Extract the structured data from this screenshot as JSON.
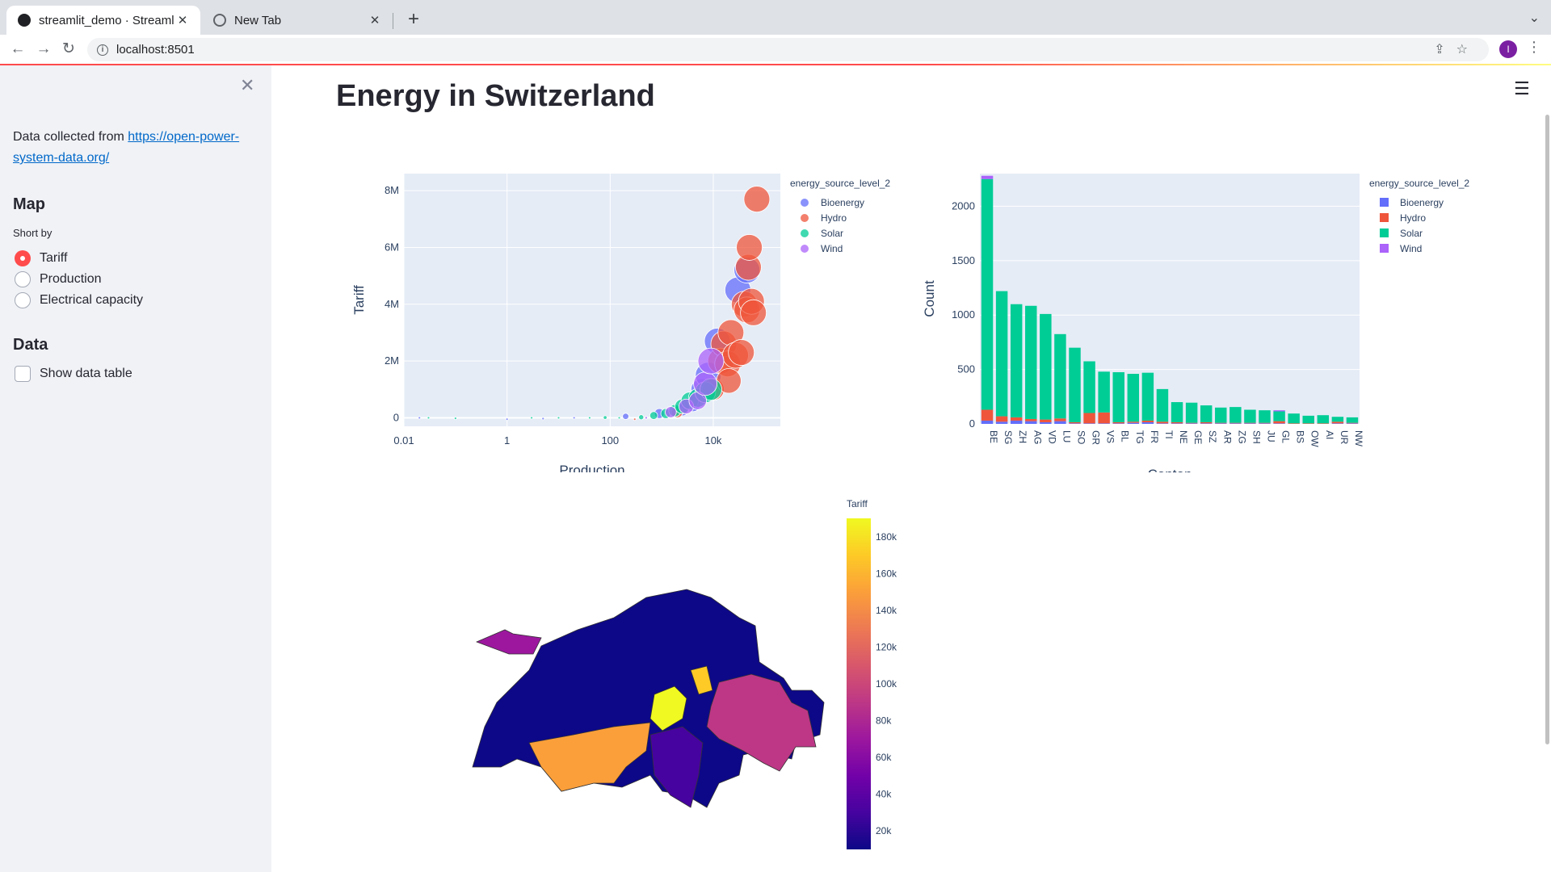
{
  "browser": {
    "tabs": [
      {
        "title": "streamlit_demo · Streamlit",
        "active": true,
        "icon": "streamlit-icon"
      },
      {
        "title": "New Tab",
        "active": false,
        "icon": "chrome-icon"
      }
    ],
    "new_tab_label": "+",
    "url": "localhost:8501",
    "profile_initial": "I"
  },
  "sidebar": {
    "intro_text": "Data collected from ",
    "link_text": "https://open-power-system-data.org/",
    "map_heading": "Map",
    "sort_label": "Short by",
    "radio_options": [
      "Tariff",
      "Production",
      "Electrical capacity"
    ],
    "selected_option": "Tariff",
    "data_heading": "Data",
    "checkbox_label": "Show data table",
    "checkbox_checked": false
  },
  "main": {
    "title": "Energy in Switzerland"
  },
  "colors": {
    "accent": "#ff4b4b",
    "link": "#0068c9",
    "Bioenergy": "#636efa",
    "Hydro": "#ef553b",
    "Solar": "#00cc96",
    "Wind": "#ab63fa",
    "plot_bg": "#e5ecf6"
  },
  "chart_data": [
    {
      "type": "scatter",
      "xlabel": "Production",
      "ylabel": "Tariff",
      "x_scale": "log",
      "x_ticks": [
        "0.01",
        "1",
        "100",
        "10k"
      ],
      "y_ticks": [
        "0",
        "2M",
        "4M",
        "6M",
        "8M"
      ],
      "ylim": [
        -300000,
        8600000
      ],
      "legend_title": "energy_source_level_2",
      "legend_position": "right",
      "series": [
        {
          "name": "Bioenergy",
          "points": [
            [
              0.02,
              0
            ],
            [
              1,
              -50000
            ],
            [
              5,
              -30000
            ],
            [
              20,
              0
            ],
            [
              200,
              50000
            ],
            [
              900,
              150000
            ],
            [
              2500,
              300000
            ],
            [
              4000,
              500000
            ],
            [
              6000,
              1000000
            ],
            [
              8000,
              1500000
            ],
            [
              12000,
              2700000
            ],
            [
              30000,
              4500000
            ],
            [
              45000,
              5200000
            ]
          ]
        },
        {
          "name": "Hydro",
          "points": [
            [
              300,
              -50000
            ],
            [
              2000,
              200000
            ],
            [
              10000,
              1000000
            ],
            [
              14000,
              2000000
            ],
            [
              16000,
              2600000
            ],
            [
              19000,
              1900000
            ],
            [
              22000,
              3000000
            ],
            [
              27000,
              2200000
            ],
            [
              35000,
              2300000
            ],
            [
              40000,
              4000000
            ],
            [
              45000,
              3800000
            ],
            [
              55000,
              4100000
            ],
            [
              60000,
              3700000
            ],
            [
              48000,
              5300000
            ],
            [
              50000,
              6000000
            ],
            [
              70000,
              7700000
            ],
            [
              20000,
              1300000
            ]
          ]
        },
        {
          "name": "Solar",
          "points": [
            [
              0.03,
              0
            ],
            [
              0.1,
              -20000
            ],
            [
              3,
              0
            ],
            [
              10,
              0
            ],
            [
              40,
              0
            ],
            [
              80,
              10000
            ],
            [
              150,
              0
            ],
            [
              400,
              20000
            ],
            [
              700,
              80000
            ],
            [
              1200,
              150000
            ],
            [
              1800,
              250000
            ],
            [
              2500,
              400000
            ],
            [
              3500,
              600000
            ],
            [
              5000,
              700000
            ],
            [
              7000,
              900000
            ],
            [
              9000,
              1000000
            ]
          ]
        },
        {
          "name": "Wind",
          "points": [
            [
              500,
              0
            ],
            [
              1500,
              200000
            ],
            [
              3000,
              400000
            ],
            [
              5000,
              600000
            ],
            [
              7000,
              1200000
            ],
            [
              9000,
              2000000
            ]
          ]
        }
      ]
    },
    {
      "type": "bar",
      "stacked": true,
      "xlabel": "Canton",
      "ylabel": "Count",
      "y_ticks": [
        "0",
        "500",
        "1000",
        "1500",
        "2000"
      ],
      "ylim": [
        0,
        2300
      ],
      "legend_title": "energy_source_level_2",
      "legend_position": "right",
      "categories": [
        "BE",
        "SG",
        "ZH",
        "AG",
        "VD",
        "LU",
        "SO",
        "GR",
        "VS",
        "BL",
        "TG",
        "FR",
        "TI",
        "NE",
        "GE",
        "SZ",
        "AR",
        "ZG",
        "SH",
        "JU",
        "GL",
        "BS",
        "OW",
        "AI",
        "UR",
        "NW"
      ],
      "series": [
        {
          "name": "Bioenergy",
          "values": [
            30,
            20,
            30,
            25,
            15,
            25,
            5,
            5,
            5,
            5,
            10,
            15,
            5,
            5,
            5,
            5,
            5,
            5,
            5,
            5,
            5,
            0,
            0,
            0,
            5,
            5
          ]
        },
        {
          "name": "Hydro",
          "values": [
            100,
            50,
            30,
            20,
            25,
            25,
            10,
            95,
            100,
            10,
            10,
            15,
            15,
            10,
            5,
            10,
            5,
            5,
            5,
            5,
            20,
            5,
            5,
            5,
            15,
            5
          ]
        },
        {
          "name": "Solar",
          "values": [
            2120,
            1150,
            1040,
            1040,
            970,
            775,
            685,
            475,
            375,
            460,
            440,
            440,
            300,
            185,
            185,
            155,
            140,
            145,
            120,
            115,
            90,
            90,
            70,
            75,
            45,
            50
          ]
        },
        {
          "name": "Wind",
          "values": [
            30,
            0,
            0,
            0,
            0,
            0,
            0,
            0,
            0,
            0,
            0,
            0,
            0,
            0,
            0,
            0,
            0,
            0,
            0,
            0,
            10,
            0,
            0,
            0,
            0,
            0
          ]
        }
      ]
    },
    {
      "type": "heatmap",
      "subtype": "choropleth",
      "colorbar_title": "Tariff",
      "colorbar_ticks": [
        "20k",
        "40k",
        "60k",
        "80k",
        "100k",
        "120k",
        "140k",
        "160k",
        "180k"
      ],
      "colorscale": "plasma",
      "regions": [
        {
          "name": "VS",
          "value": 140000
        },
        {
          "name": "GR",
          "value": 85000
        },
        {
          "name": "UR",
          "value": 180000
        },
        {
          "name": "GL",
          "value": 160000
        },
        {
          "name": "TI",
          "value": 30000
        },
        {
          "name": "JU",
          "value": 65000
        },
        {
          "name": "BE",
          "value": 25000
        },
        {
          "name": "VD",
          "value": 25000
        }
      ]
    }
  ]
}
